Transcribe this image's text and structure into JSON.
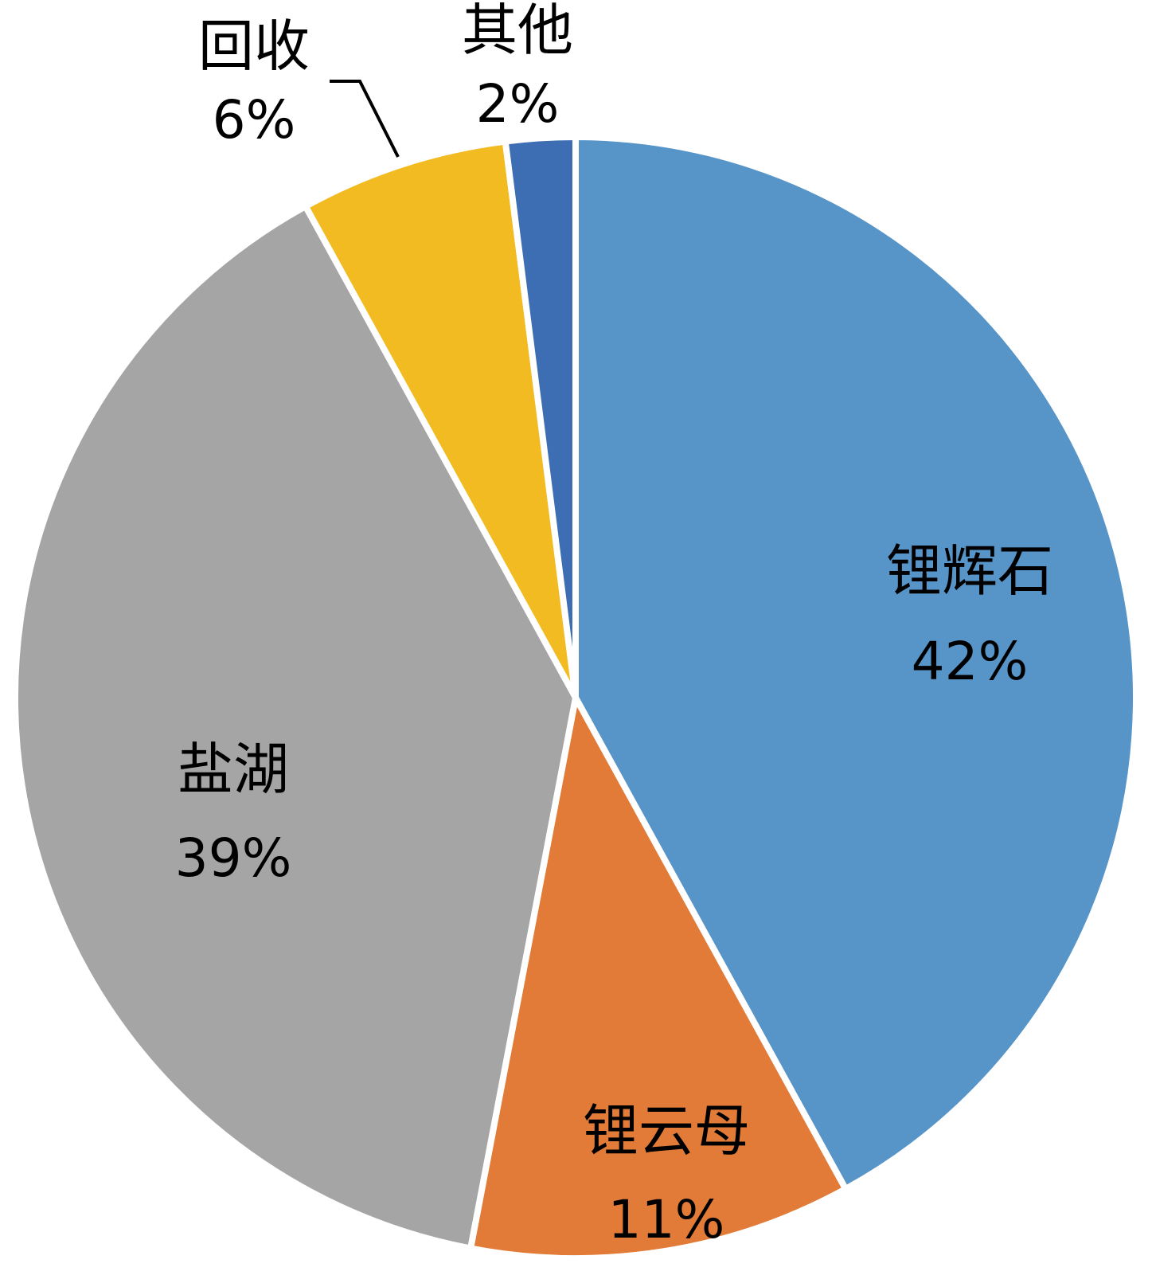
{
  "chart_data": {
    "type": "pie",
    "start_angle": "12 o'clock",
    "direction": "clockwise",
    "slices": [
      {
        "label": "锂辉石",
        "value": 42,
        "value_label": "42%",
        "color": "#5794C8"
      },
      {
        "label": "锂云母",
        "value": 11,
        "value_label": "11%",
        "color": "#E27B37"
      },
      {
        "label": "盐湖",
        "value": 39,
        "value_label": "39%",
        "color": "#A5A5A5"
      },
      {
        "label": "回收",
        "value": 6,
        "value_label": "6%",
        "color": "#F2BB22"
      },
      {
        "label": "其他",
        "value": 2,
        "value_label": "2%",
        "color": "#3D6DB3"
      }
    ]
  }
}
